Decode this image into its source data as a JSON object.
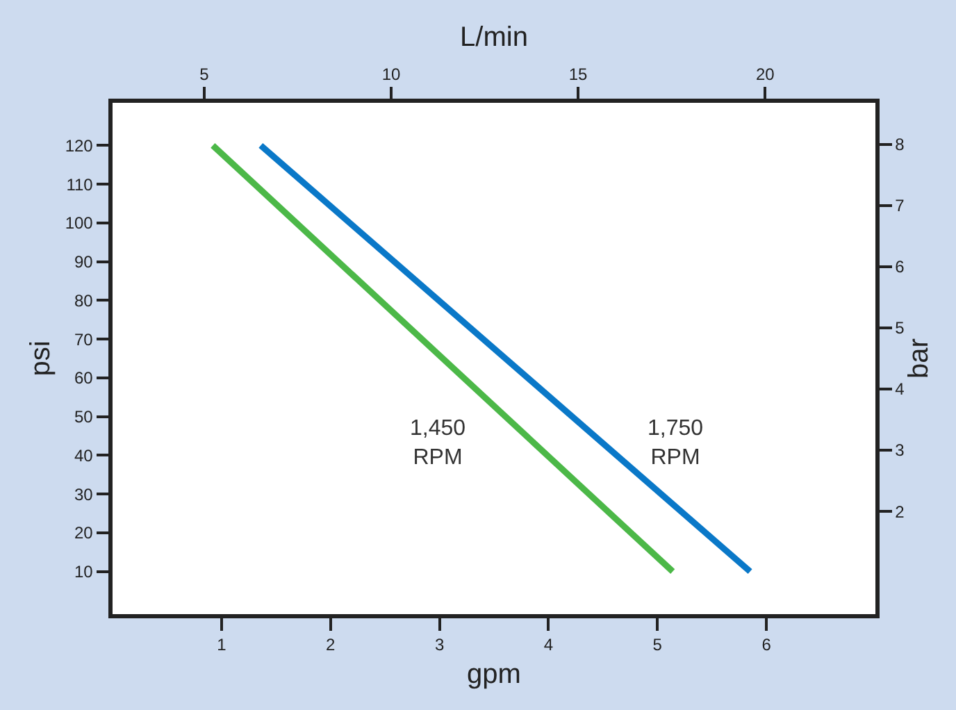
{
  "chart_data": {
    "type": "line",
    "xlabel": "gpm",
    "ylabel": "psi",
    "x2label": "L/min",
    "y2label": "bar",
    "series": [
      {
        "name": "1,450\nRPM",
        "color": "#4cb848",
        "x": [
          0.92,
          5.14
        ],
        "values": [
          120,
          10
        ]
      },
      {
        "name": "1,750\nRPM",
        "color": "#0a78c8",
        "x": [
          1.36,
          5.85
        ],
        "values": [
          120,
          10
        ]
      }
    ],
    "xlim": [
      0,
      7
    ],
    "xticks": [
      1,
      2,
      3,
      4,
      5,
      6
    ],
    "ylim": [
      -1,
      131
    ],
    "yticks": [
      10,
      20,
      30,
      40,
      50,
      60,
      70,
      80,
      90,
      100,
      110,
      120
    ],
    "x2lim": [
      2.55,
      22.95
    ],
    "x2ticks": [
      5,
      10,
      15,
      20
    ],
    "y2lim": [
      0.32,
      8.68
    ],
    "y2ticks": [
      2,
      3,
      4,
      5,
      6,
      7,
      8
    ],
    "grid": false,
    "legend": false,
    "marker": "none",
    "line_style": "solid"
  }
}
